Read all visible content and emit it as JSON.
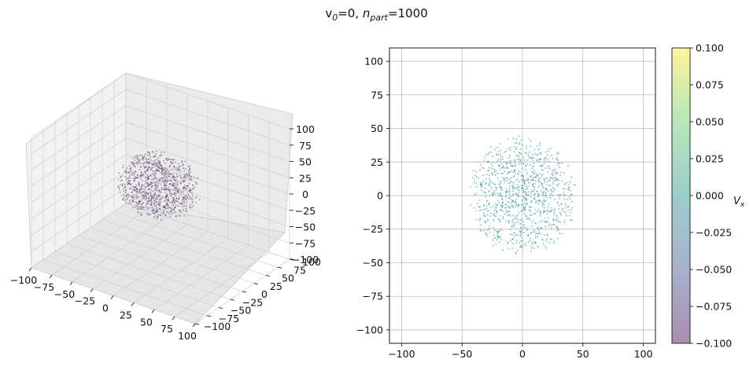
{
  "figure": {
    "title_v0": "v",
    "title_v0_sub": "0",
    "title_v0_val": "=0, ",
    "title_n": "n",
    "title_n_sub": "part",
    "title_n_val": "=1000"
  },
  "chart_data": [
    {
      "type": "scatter",
      "title": "",
      "projection": "3d",
      "xlim": [
        -100,
        100
      ],
      "ylim": [
        -100,
        100
      ],
      "zlim": [
        -100,
        100
      ],
      "x_ticks": [
        "−100",
        "−75",
        "−50",
        "−25",
        "0",
        "25",
        "50",
        "75",
        "100"
      ],
      "y_ticks": [
        "−100",
        "−75",
        "−50",
        "−25",
        "0",
        "25",
        "50",
        "75",
        "100"
      ],
      "z_ticks": [
        "100",
        "75",
        "50",
        "25",
        "0",
        "−25",
        "−50",
        "−75",
        "−100"
      ],
      "n_points": 1000,
      "distribution": "uniform sphere, radius 45, centered at origin",
      "marker_color": "#5a3a6e",
      "grid": true
    },
    {
      "type": "scatter",
      "title": "",
      "xlim": [
        -110,
        110
      ],
      "ylim": [
        -110,
        110
      ],
      "x_ticks": [
        "−100",
        "−50",
        "0",
        "50",
        "100"
      ],
      "y_ticks": [
        "100",
        "75",
        "50",
        "25",
        "0",
        "−25",
        "−50",
        "−75",
        "−100"
      ],
      "n_points": 1000,
      "distribution": "projected uniform sphere, radius 45, centered at origin",
      "marker_color": "#21918c",
      "grid": true,
      "colorbar": {
        "label": "V",
        "label_sub": "x",
        "range": [
          -0.1,
          0.1
        ],
        "ticks": [
          "0.100",
          "0.075",
          "0.050",
          "0.025",
          "0.000",
          "−0.025",
          "−0.050",
          "−0.075",
          "−0.100"
        ],
        "colormap": "viridis"
      }
    }
  ]
}
